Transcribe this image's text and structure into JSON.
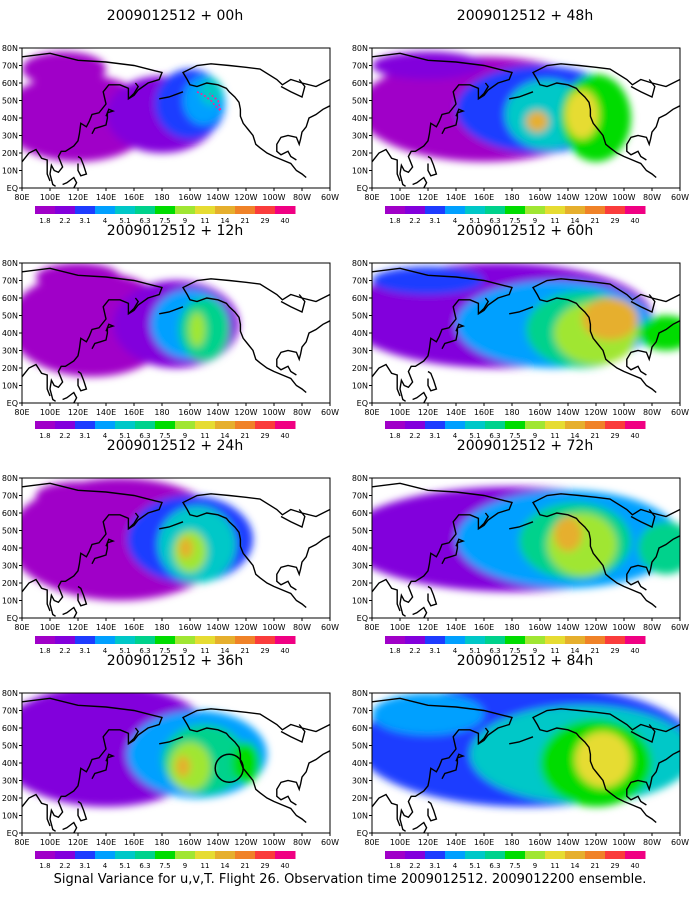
{
  "panels": [
    {
      "title": "2009012512 + 00h",
      "marker": "track"
    },
    {
      "title": "2009012512 + 48h",
      "marker": ""
    },
    {
      "title": "2009012512 + 12h",
      "marker": ""
    },
    {
      "title": "2009012512 + 60h",
      "marker": ""
    },
    {
      "title": "2009012512 + 24h",
      "marker": ""
    },
    {
      "title": "2009012512 + 72h",
      "marker": ""
    },
    {
      "title": "2009012512 + 36h",
      "marker": "circle"
    },
    {
      "title": "2009012512 + 84h",
      "marker": ""
    }
  ],
  "x_ticks": [
    "80E",
    "100E",
    "120E",
    "140E",
    "160E",
    "180",
    "160W",
    "140W",
    "120W",
    "100W",
    "80W",
    "60W"
  ],
  "y_ticks": [
    "EQ",
    "10N",
    "20N",
    "30N",
    "40N",
    "50N",
    "60N",
    "70N",
    "80N"
  ],
  "colorbar": {
    "labels": [
      "1.8",
      "2.2",
      "3.1",
      "4",
      "5.1",
      "6.3",
      "7.5",
      "9",
      "11",
      "14",
      "21",
      "29",
      "40"
    ],
    "colors": [
      "#a000c8",
      "#8200dc",
      "#1e3cff",
      "#00a0ff",
      "#00c8c8",
      "#00d28c",
      "#00dc00",
      "#a0e632",
      "#e6dc32",
      "#e6af2d",
      "#f08228",
      "#fa3c3c",
      "#f00082"
    ]
  },
  "caption": "Signal Variance for u,v,T. Flight 26. Observation time 2009012512. 2009012200 ensemble."
}
